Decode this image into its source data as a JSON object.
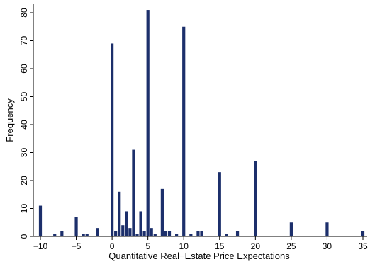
{
  "chart_data": {
    "type": "bar",
    "title": "",
    "xlabel": "Quantitative Real−Estate Price Expectations",
    "ylabel": "Frequency",
    "xlim": [
      -11,
      36
    ],
    "ylim": [
      0,
      82
    ],
    "grid": false,
    "bar_color": "#1c2f6b",
    "xticks": [
      -10,
      -5,
      0,
      5,
      10,
      15,
      20,
      25,
      30,
      35
    ],
    "xtick_labels": [
      "−10",
      "−5",
      "0",
      "5",
      "10",
      "15",
      "20",
      "25",
      "30",
      "35"
    ],
    "yticks": [
      0,
      10,
      20,
      30,
      40,
      50,
      60,
      70,
      80
    ],
    "ytick_labels": [
      "0",
      "10",
      "20",
      "30",
      "40",
      "50",
      "60",
      "70",
      "80"
    ],
    "x": [
      -10,
      -8,
      -7,
      -5,
      -4,
      -3.5,
      -2,
      0,
      0.5,
      1,
      1.5,
      2,
      2.5,
      3,
      3.5,
      4,
      4.5,
      5,
      5.5,
      6,
      7,
      7.5,
      8,
      9,
      10,
      11,
      12,
      12.5,
      15,
      16,
      17.5,
      20,
      25,
      30,
      35
    ],
    "values": [
      11,
      1,
      2,
      7,
      1,
      1,
      3,
      69,
      2,
      16,
      4,
      9,
      3,
      31,
      1,
      9,
      2,
      81,
      3,
      1,
      17,
      2,
      2,
      1,
      75,
      1,
      2,
      2,
      23,
      1,
      2,
      27,
      5,
      5,
      2
    ]
  }
}
